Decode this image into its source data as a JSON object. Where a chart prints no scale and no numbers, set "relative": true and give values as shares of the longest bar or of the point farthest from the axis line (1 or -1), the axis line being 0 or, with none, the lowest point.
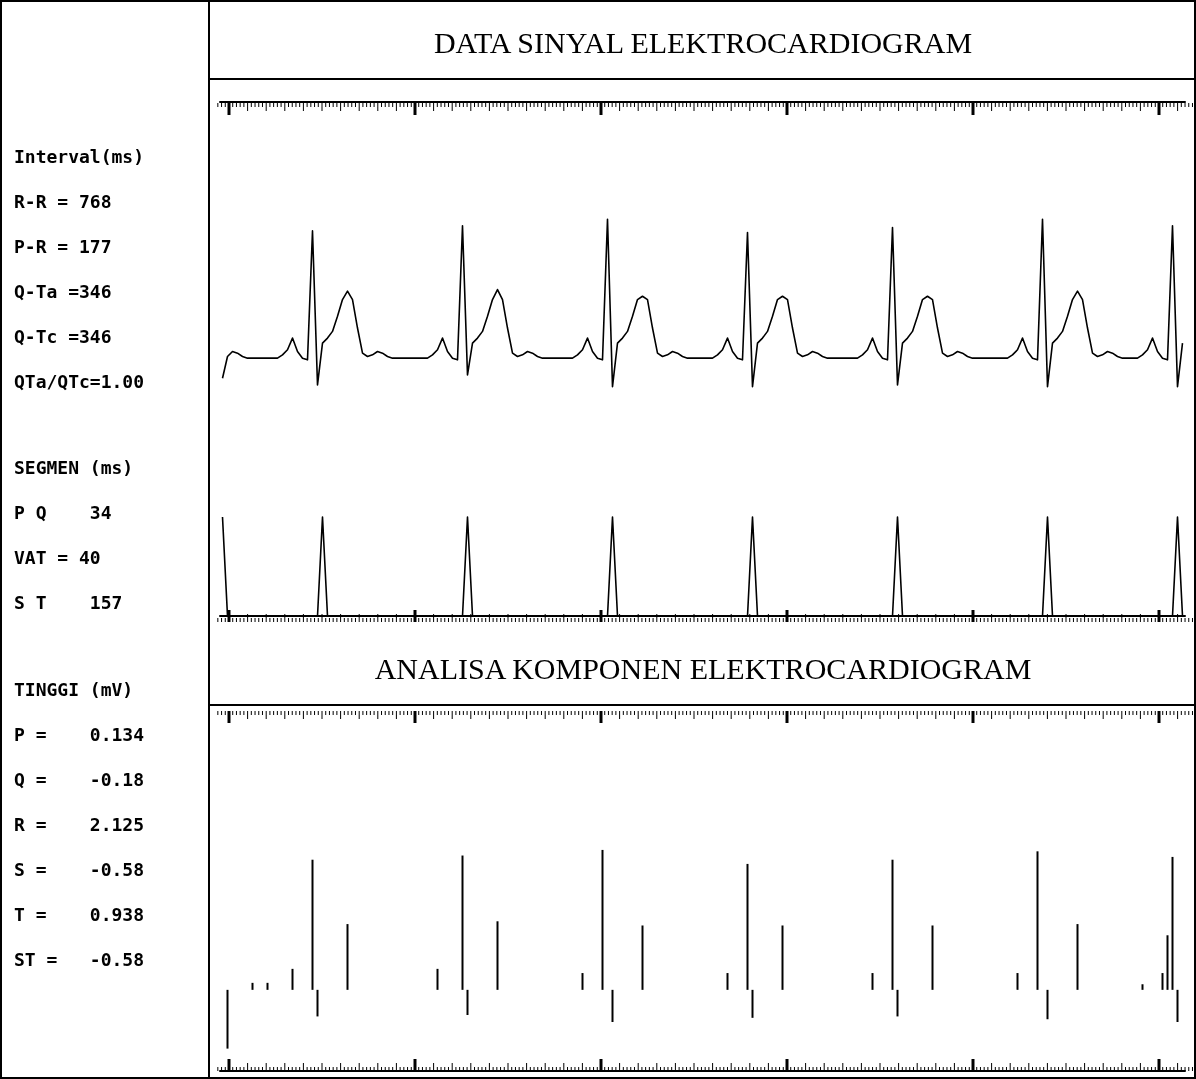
{
  "chart_data": [
    {
      "type": "other",
      "title": "Interval(ms)",
      "annotations": [
        "R-R = 768",
        "P-R = 177",
        "Q-Ta =346",
        "Q-Tc =346",
        "QTa/QTc=1.00"
      ]
    },
    {
      "type": "other",
      "title": "SEGMEN (ms)",
      "annotations": [
        "P Q    34",
        "VAT = 40",
        "S T    157"
      ]
    },
    {
      "type": "other",
      "title": "TINGGI (mV)",
      "annotations": [
        "P =    0.134",
        "Q =    -0.18",
        "R =    2.125",
        "S =    -0.58",
        "T =    0.938",
        "ST =   -0.58"
      ]
    },
    {
      "type": "line",
      "title": "DATA SINYAL ELEKTROCARDIOGRAM",
      "relative": true,
      "categories": [
        null,
        null,
        null,
        null,
        null,
        null,
        null,
        null,
        null,
        null,
        null,
        null,
        null,
        null,
        null,
        null,
        null,
        null,
        null,
        null,
        null,
        null,
        null,
        null,
        null,
        null,
        null,
        null,
        null,
        null,
        null,
        null,
        null,
        null,
        null,
        null,
        null,
        null,
        null,
        null,
        null,
        null,
        null,
        null,
        null,
        null,
        null,
        null,
        null,
        null,
        null,
        null,
        null,
        null,
        null,
        null,
        null,
        null,
        null,
        null,
        null,
        null,
        null,
        null,
        null,
        null,
        null,
        null,
        null,
        null,
        null,
        null,
        null,
        null,
        null,
        null,
        null,
        null,
        null,
        null,
        null,
        null,
        null,
        null,
        null,
        null,
        null,
        null,
        null,
        null,
        null,
        null,
        null,
        null,
        null,
        null,
        null,
        null,
        null,
        null,
        null,
        null,
        null,
        null,
        null,
        null,
        null,
        null,
        null,
        null,
        null,
        null,
        null,
        null,
        null,
        null,
        null,
        null,
        null,
        null,
        null,
        null,
        null,
        null,
        null,
        null,
        null,
        null,
        null,
        null,
        null,
        null,
        null,
        null,
        null,
        null,
        null,
        null,
        null,
        null,
        null,
        null,
        null,
        null,
        null,
        null,
        null,
        null,
        null,
        null,
        null,
        null,
        null,
        null,
        null,
        null,
        null,
        null,
        null,
        null,
        null,
        null,
        null,
        null,
        null,
        null,
        null,
        null,
        null,
        null,
        null,
        null,
        null,
        null,
        null,
        null,
        null,
        null,
        null,
        null,
        null,
        null,
        null,
        null,
        null,
        null,
        null,
        null,
        null,
        null,
        null,
        null,
        null
      ],
      "series": [
        {
          "color": "#000000",
          "values": [
            0.05,
            0.18,
            0.21,
            0.2,
            0.18,
            0.17,
            0.17,
            0.17,
            0.17,
            0.17,
            0.17,
            0.17,
            0.19,
            0.22,
            0.29,
            0.21,
            0.17,
            0.16,
            0.93,
            0.01,
            0.26,
            0.29,
            0.33,
            0.42,
            0.52,
            0.57,
            0.52,
            0.35,
            0.2,
            0.18,
            0.19,
            0.21,
            0.2,
            0.18,
            0.17,
            0.17,
            0.17,
            0.17,
            0.17,
            0.17,
            0.17,
            0.17,
            0.19,
            0.22,
            0.29,
            0.21,
            0.17,
            0.16,
            0.96,
            0.07,
            0.26,
            0.29,
            0.33,
            0.42,
            0.52,
            0.58,
            0.52,
            0.35,
            0.2,
            0.18,
            0.19,
            0.21,
            0.2,
            0.18,
            0.17,
            0.17,
            0.17,
            0.17,
            0.17,
            0.17,
            0.17,
            0.19,
            0.22,
            0.29,
            0.21,
            0.17,
            0.16,
            1.0,
            0,
            0.26,
            0.29,
            0.33,
            0.42,
            0.52,
            0.54,
            0.52,
            0.35,
            0.2,
            0.18,
            0.19,
            0.21,
            0.2,
            0.18,
            0.17,
            0.17,
            0.17,
            0.17,
            0.17,
            0.17,
            0.19,
            0.22,
            0.29,
            0.21,
            0.17,
            0.16,
            0.92,
            0,
            0.26,
            0.29,
            0.33,
            0.42,
            0.52,
            0.54,
            0.52,
            0.35,
            0.2,
            0.18,
            0.19,
            0.21,
            0.2,
            0.18,
            0.17,
            0.17,
            0.17,
            0.17,
            0.17,
            0.17,
            0.17,
            0.19,
            0.22,
            0.29,
            0.21,
            0.17,
            0.16,
            0.95,
            0.01,
            0.26,
            0.29,
            0.33,
            0.42,
            0.52,
            0.54,
            0.52,
            0.35,
            0.2,
            0.18,
            0.19,
            0.21,
            0.2,
            0.18,
            0.17,
            0.17,
            0.17,
            0.17,
            0.17,
            0.17,
            0.17,
            0.17,
            0.19,
            0.22,
            0.29,
            0.21,
            0.17,
            0.16,
            1.0,
            0,
            0.26,
            0.29,
            0.33,
            0.42,
            0.52,
            0.57,
            0.52,
            0.35,
            0.2,
            0.18,
            0.19,
            0.21,
            0.2,
            0.18,
            0.17,
            0.17,
            0.17,
            0.17,
            0.19,
            0.22,
            0.29,
            0.21,
            0.17,
            0.16,
            0.96,
            0,
            0.26
          ]
        }
      ]
    },
    {
      "type": "line",
      "relative": true,
      "categories": [
        null,
        null,
        null,
        null,
        null,
        null,
        null,
        null,
        null,
        null,
        null,
        null,
        null,
        null,
        null,
        null,
        null,
        null,
        null,
        null,
        null,
        null,
        null,
        null,
        null,
        null,
        null,
        null,
        null,
        null,
        null,
        null,
        null,
        null,
        null,
        null,
        null,
        null,
        null,
        null,
        null,
        null,
        null,
        null,
        null,
        null,
        null,
        null,
        null,
        null,
        null,
        null,
        null,
        null,
        null,
        null,
        null,
        null,
        null,
        null,
        null,
        null,
        null,
        null,
        null,
        null,
        null,
        null,
        null,
        null,
        null,
        null,
        null,
        null,
        null,
        null,
        null,
        null,
        null,
        null,
        null,
        null,
        null,
        null,
        null,
        null,
        null,
        null,
        null,
        null,
        null,
        null,
        null,
        null,
        null,
        null,
        null,
        null,
        null,
        null,
        null,
        null,
        null,
        null,
        null,
        null,
        null,
        null,
        null,
        null,
        null,
        null,
        null,
        null,
        null,
        null,
        null,
        null,
        null,
        null,
        null,
        null,
        null,
        null,
        null,
        null,
        null,
        null,
        null,
        null,
        null,
        null,
        null,
        null,
        null,
        null,
        null,
        null,
        null,
        null,
        null,
        null,
        null,
        null,
        null,
        null,
        null,
        null,
        null,
        null,
        null,
        null,
        null,
        null,
        null,
        null,
        null,
        null,
        null,
        null,
        null,
        null,
        null,
        null,
        null,
        null,
        null,
        null,
        null,
        null,
        null,
        null,
        null,
        null,
        null,
        null,
        null,
        null,
        null,
        null,
        null,
        null,
        null,
        null,
        null,
        null,
        null,
        null,
        null,
        null,
        null,
        null,
        null
      ],
      "series": [
        {
          "color": "#000000",
          "values": [
            1,
            0,
            0,
            0,
            0,
            0,
            0,
            0,
            0,
            0,
            0,
            0,
            0,
            0,
            0,
            0,
            0,
            0,
            0,
            0,
            1,
            0,
            0,
            0,
            0,
            0,
            0,
            0,
            0,
            0,
            0,
            0,
            0,
            0,
            0,
            0,
            0,
            0,
            0,
            0,
            0,
            0,
            0,
            0,
            0,
            0,
            0,
            0,
            0,
            1,
            0,
            0,
            0,
            0,
            0,
            0,
            0,
            0,
            0,
            0,
            0,
            0,
            0,
            0,
            0,
            0,
            0,
            0,
            0,
            0,
            0,
            0,
            0,
            0,
            0,
            0,
            0,
            0,
            1,
            0,
            0,
            0,
            0,
            0,
            0,
            0,
            0,
            0,
            0,
            0,
            0,
            0,
            0,
            0,
            0,
            0,
            0,
            0,
            0,
            0,
            0,
            0,
            0,
            0,
            0,
            0,
            1,
            0,
            0,
            0,
            0,
            0,
            0,
            0,
            0,
            0,
            0,
            0,
            0,
            0,
            0,
            0,
            0,
            0,
            0,
            0,
            0,
            0,
            0,
            0,
            0,
            0,
            0,
            0,
            0,
            1,
            0,
            0,
            0,
            0,
            0,
            0,
            0,
            0,
            0,
            0,
            0,
            0,
            0,
            0,
            0,
            0,
            0,
            0,
            0,
            0,
            0,
            0,
            0,
            0,
            0,
            0,
            0,
            0,
            0,
            1,
            0,
            0,
            0,
            0,
            0,
            0,
            0,
            0,
            0,
            0,
            0,
            0,
            0,
            0,
            0,
            0,
            0,
            0,
            0,
            0,
            0,
            0,
            0,
            0,
            0,
            1,
            0
          ]
        }
      ]
    },
    {
      "type": "bar",
      "title": "ANALISA KOMPONEN ELEKTROCARDIOGRAM",
      "relative": true,
      "categories": [
        null,
        null,
        null,
        null,
        null,
        null,
        null,
        null,
        null,
        null,
        null,
        null,
        null,
        null,
        null,
        null,
        null,
        null,
        null,
        null,
        null,
        null,
        null,
        null,
        null,
        null,
        null,
        null,
        null,
        null,
        null,
        null,
        null,
        null,
        null,
        null,
        null,
        null,
        null,
        null,
        null,
        null,
        null,
        null,
        null,
        null,
        null,
        null,
        null,
        null,
        null,
        null,
        null,
        null,
        null,
        null,
        null,
        null,
        null,
        null,
        null,
        null,
        null,
        null,
        null,
        null,
        null,
        null,
        null,
        null,
        null,
        null,
        null,
        null,
        null,
        null,
        null,
        null,
        null,
        null,
        null,
        null,
        null,
        null,
        null,
        null,
        null,
        null,
        null,
        null,
        null,
        null,
        null,
        null,
        null,
        null,
        null,
        null,
        null,
        null,
        null,
        null,
        null,
        null,
        null,
        null,
        null,
        null,
        null,
        null,
        null,
        null,
        null,
        null,
        null,
        null,
        null,
        null,
        null,
        null,
        null,
        null,
        null,
        null,
        null,
        null,
        null,
        null,
        null,
        null,
        null,
        null,
        null,
        null,
        null,
        null,
        null,
        null,
        null,
        null,
        null,
        null,
        null,
        null,
        null,
        null,
        null,
        null,
        null,
        null,
        null,
        null,
        null,
        null,
        null,
        null,
        null,
        null,
        null,
        null,
        null,
        null,
        null,
        null,
        null,
        null,
        null,
        null,
        null,
        null,
        null,
        null,
        null,
        null,
        null,
        null,
        null,
        null,
        null,
        null,
        null,
        null,
        null,
        null,
        null,
        null,
        null,
        null,
        null,
        null,
        null,
        null,
        null
      ],
      "series": [
        {
          "color": "#000000",
          "values": [
            0,
            -0.42,
            0,
            0,
            0,
            0,
            0.05,
            0,
            0,
            0.05,
            0,
            0,
            0,
            0,
            0.15,
            0,
            0,
            0,
            0.93,
            -0.19,
            0,
            0,
            0,
            0,
            0,
            0.47,
            0,
            0,
            0,
            0,
            0,
            0,
            0,
            0,
            0,
            0,
            0,
            0,
            0,
            0,
            0,
            0,
            0,
            0.15,
            0,
            0,
            0,
            0,
            0.96,
            -0.18,
            0,
            0,
            0,
            0,
            0,
            0.49,
            0,
            0,
            0,
            0,
            0,
            0,
            0,
            0,
            0,
            0,
            0,
            0,
            0,
            0,
            0,
            0,
            0.12,
            0,
            0,
            0,
            1.0,
            0,
            -0.23,
            0,
            0,
            0,
            0,
            0,
            0.46,
            0,
            0,
            0,
            0,
            0,
            0,
            0,
            0,
            0,
            0,
            0,
            0,
            0,
            0,
            0,
            0,
            0.12,
            0,
            0,
            0,
            0.9,
            -0.2,
            0,
            0,
            0,
            0,
            0,
            0.46,
            0,
            0,
            0,
            0,
            0,
            0,
            0,
            0,
            0,
            0,
            0,
            0,
            0,
            0,
            0,
            0,
            0,
            0.12,
            0,
            0,
            0,
            0.93,
            -0.19,
            0,
            0,
            0,
            0,
            0,
            0,
            0.46,
            0,
            0,
            0,
            0,
            0,
            0,
            0,
            0,
            0,
            0,
            0,
            0,
            0,
            0,
            0,
            0,
            0.12,
            0,
            0,
            0,
            0.99,
            0,
            -0.21,
            0,
            0,
            0,
            0,
            0,
            0.47,
            0,
            0,
            0,
            0,
            0,
            0,
            0,
            0,
            0,
            0,
            0,
            0,
            0.04,
            0,
            0,
            0,
            0.12,
            0.39,
            0.95,
            -0.23,
            0
          ]
        }
      ]
    }
  ]
}
